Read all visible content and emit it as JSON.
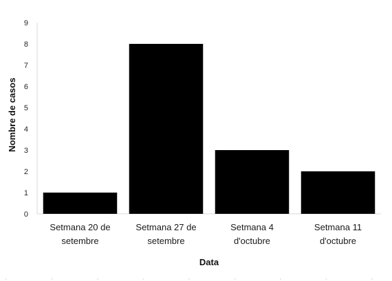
{
  "chart_data": {
    "type": "bar",
    "categories": [
      [
        "Setmana 20 de",
        "setembre"
      ],
      [
        "Setmana 27 de",
        "setembre"
      ],
      [
        "Setmana 4",
        "d'octubre"
      ],
      [
        "Setmana 11",
        "d'octubre"
      ]
    ],
    "values": [
      1,
      8,
      3,
      2
    ],
    "title": "",
    "xlabel": "Data",
    "ylabel": "Nombre de casos",
    "ylim": [
      0,
      9
    ],
    "yticks": [
      0,
      1,
      2,
      3,
      4,
      5,
      6,
      7,
      8,
      9
    ],
    "grid": false,
    "legend": "none",
    "colors": {
      "bar": "#000000",
      "axis": "#d9d9d9",
      "text": "#262626"
    }
  }
}
